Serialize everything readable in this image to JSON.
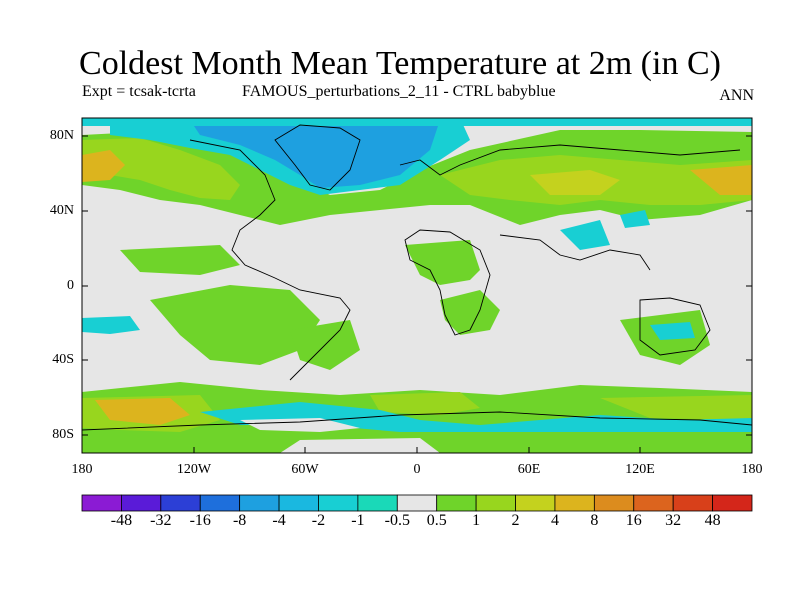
{
  "title": "Coldest Month Mean Temperature at 2m (in C)",
  "experiment_label": "Expt = tcsak-tcrta",
  "model_label": "FAMOUS_perturbations_2_11 - CTRL babyblue",
  "season": "ANN",
  "lat_ticks": [
    "80N",
    "40N",
    "0",
    "40S",
    "80S"
  ],
  "lon_ticks": [
    "180",
    "120W",
    "60W",
    "0",
    "60E",
    "120E",
    "180"
  ],
  "colorbar": {
    "labels": [
      "-48",
      "-32",
      "-16",
      "-8",
      "-4",
      "-2",
      "-1",
      "-0.5",
      "0.5",
      "1",
      "2",
      "4",
      "8",
      "16",
      "32",
      "48"
    ],
    "colors": [
      "#8b1bd4",
      "#5a1bd8",
      "#2c3fd6",
      "#1e6fdc",
      "#1ea0e0",
      "#1ab8e0",
      "#18cfd3",
      "#1ad9b8",
      "#e6e6e6",
      "#6fd42a",
      "#98d61e",
      "#c4d21e",
      "#dcb41e",
      "#dc8c1e",
      "#dc641e",
      "#d8401a",
      "#d4261a"
    ]
  },
  "colors": {
    "ocean_background": "#e6e6e6",
    "strong_cooling": "#1ea0e0",
    "cooling": "#18cfd3",
    "warming_small": "#6fd42a",
    "warming_mid": "#98d61e",
    "warming_large": "#dcb41e"
  }
}
